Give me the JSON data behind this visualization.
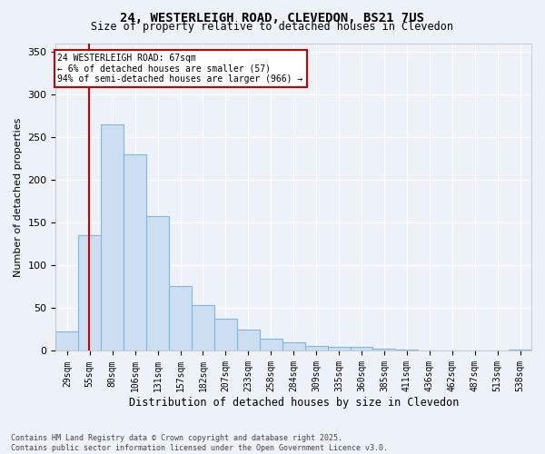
{
  "title": "24, WESTERLEIGH ROAD, CLEVEDON, BS21 7US",
  "subtitle": "Size of property relative to detached houses in Clevedon",
  "xlabel": "Distribution of detached houses by size in Clevedon",
  "ylabel": "Number of detached properties",
  "bin_heights": [
    23,
    135,
    265,
    230,
    158,
    76,
    54,
    38,
    25,
    14,
    10,
    6,
    5,
    5,
    3,
    2,
    1,
    1,
    0,
    1,
    2
  ],
  "categories": [
    "29sqm",
    "55sqm",
    "80sqm",
    "106sqm",
    "131sqm",
    "157sqm",
    "182sqm",
    "207sqm",
    "233sqm",
    "258sqm",
    "284sqm",
    "309sqm",
    "335sqm",
    "360sqm",
    "385sqm",
    "411sqm",
    "436sqm",
    "462sqm",
    "487sqm",
    "513sqm",
    "538sqm"
  ],
  "bar_color": "#ccdff2",
  "bar_edgecolor": "#85b5d9",
  "property_sqm": 67,
  "bin_starts": [
    29,
    55,
    80,
    106,
    131,
    157,
    182,
    207,
    233,
    258,
    284,
    309,
    335,
    360,
    385,
    411,
    436,
    462,
    487,
    513,
    538
  ],
  "annotation_line1": "24 WESTERLEIGH ROAD: 67sqm",
  "annotation_line2": "← 6% of detached houses are smaller (57)",
  "annotation_line3": "94% of semi-detached houses are larger (966) →",
  "line_color": "#cc0000",
  "annotation_box_edgecolor": "#cc0000",
  "ylim": [
    0,
    360
  ],
  "yticks": [
    0,
    50,
    100,
    150,
    200,
    250,
    300,
    350
  ],
  "bg_color": "#edf1f8",
  "footer_text": "Contains HM Land Registry data © Crown copyright and database right 2025.\nContains public sector information licensed under the Open Government Licence v3.0."
}
